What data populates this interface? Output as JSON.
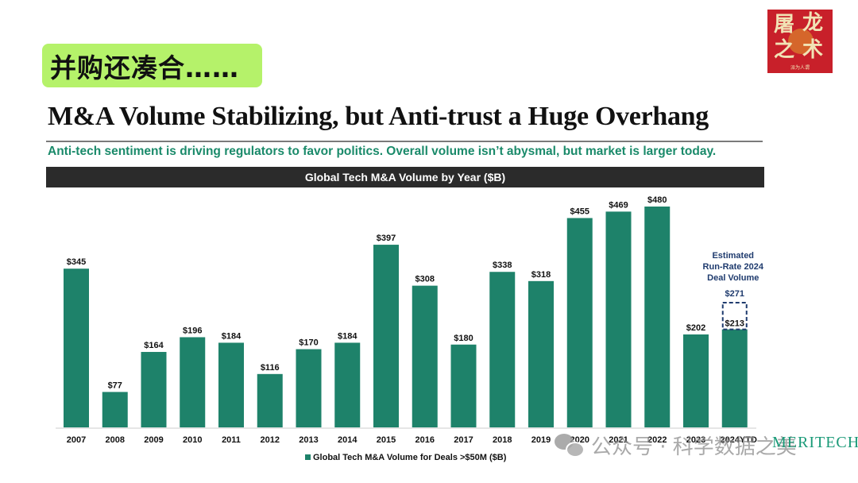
{
  "tag": {
    "label": "并购还凑合……"
  },
  "logo": {
    "line1a": "屠",
    "line1b": "龙",
    "line2a": "之",
    "line2b": "术",
    "sub": "派为人谓"
  },
  "slide": {
    "title": "M&A Volume Stabilizing, but Anti-trust a Huge Overhang",
    "subtitle": "Anti-tech sentiment is driving regulators to favor politics. Overall volume isn’t abysmal, but market is larger today."
  },
  "watermark": {
    "text": "公众号 · 科学数据之美",
    "icon": "wechat-icon"
  },
  "brand": {
    "text": "MERITECH"
  },
  "colors": {
    "bar": "#1e826a",
    "estimate": "#1f3b6e",
    "header_bg": "#2b2b2b",
    "subtitle": "#1a8a6a",
    "tag_bg": "#b5f26a"
  },
  "chart_data": {
    "type": "bar",
    "title": "Global Tech M&A Volume by Year ($B)",
    "categories": [
      "2007",
      "2008",
      "2009",
      "2010",
      "2011",
      "2012",
      "2013",
      "2014",
      "2015",
      "2016",
      "2017",
      "2018",
      "2019",
      "2020",
      "2021",
      "2022",
      "2023",
      "2024YTD"
    ],
    "series": [
      {
        "name": "Global Tech M&A Volume for Deals >$50M ($B)",
        "values": [
          345,
          77,
          164,
          196,
          184,
          116,
          170,
          184,
          397,
          308,
          180,
          338,
          318,
          455,
          469,
          480,
          202,
          213
        ]
      }
    ],
    "value_labels": [
      "$345",
      "$77",
      "$164",
      "$196",
      "$184",
      "$116",
      "$170",
      "$184",
      "$397",
      "$308",
      "$180",
      "$338",
      "$318",
      "$455",
      "$469",
      "$480",
      "$202",
      "$213"
    ],
    "estimate": {
      "category": "2024YTD",
      "value": 271,
      "label": "$271",
      "annotation": [
        "Estimated",
        "Run-Rate 2024",
        "Deal Volume"
      ]
    },
    "xlabel": "",
    "ylabel": "",
    "ylim": [
      0,
      500
    ],
    "grid": false,
    "legend": {
      "position": "bottom",
      "entries": [
        "Global Tech M&A Volume for Deals >$50M ($B)"
      ]
    }
  }
}
